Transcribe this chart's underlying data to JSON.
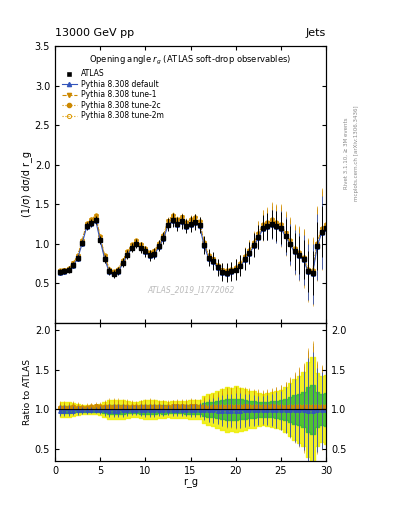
{
  "title_left": "13000 GeV pp",
  "title_right": "Jets",
  "plot_title": "Opening angle $r_g$ (ATLAS soft-drop observables)",
  "ylabel_main": "(1/σ) dσ/d r_g",
  "ylabel_ratio": "Ratio to ATLAS",
  "xlabel": "r_g",
  "watermark": "ATLAS_2019_I1772062",
  "rivet_label": "Rivet 3.1.10, ≥ 3M events",
  "side_label": "mcplots.cern.ch [arXiv:1306.3436]",
  "x": [
    0.5,
    1.0,
    1.5,
    2.0,
    2.5,
    3.0,
    3.5,
    4.0,
    4.5,
    5.0,
    5.5,
    6.0,
    6.5,
    7.0,
    7.5,
    8.0,
    8.5,
    9.0,
    9.5,
    10.0,
    10.5,
    11.0,
    11.5,
    12.0,
    12.5,
    13.0,
    13.5,
    14.0,
    14.5,
    15.0,
    15.5,
    16.0,
    16.5,
    17.0,
    17.5,
    18.0,
    18.5,
    19.0,
    19.5,
    20.0,
    20.5,
    21.0,
    21.5,
    22.0,
    22.5,
    23.0,
    23.5,
    24.0,
    24.5,
    25.0,
    25.5,
    26.0,
    26.5,
    27.0,
    27.5,
    28.0,
    28.5,
    29.0,
    29.5,
    30.0
  ],
  "atlas_y": [
    0.64,
    0.65,
    0.67,
    0.73,
    0.82,
    1.01,
    1.22,
    1.26,
    1.3,
    1.05,
    0.81,
    0.65,
    0.62,
    0.65,
    0.76,
    0.86,
    0.95,
    1.0,
    0.95,
    0.9,
    0.85,
    0.87,
    0.97,
    1.07,
    1.24,
    1.3,
    1.25,
    1.28,
    1.22,
    1.25,
    1.27,
    1.23,
    0.98,
    0.82,
    0.78,
    0.7,
    0.64,
    0.63,
    0.65,
    0.67,
    0.72,
    0.8,
    0.88,
    0.98,
    1.08,
    1.2,
    1.22,
    1.25,
    1.22,
    1.2,
    1.1,
    1.0,
    0.9,
    0.85,
    0.8,
    0.65,
    0.63,
    0.97,
    1.15,
    1.2
  ],
  "atlas_yerr": [
    0.04,
    0.04,
    0.04,
    0.04,
    0.04,
    0.04,
    0.05,
    0.05,
    0.05,
    0.05,
    0.05,
    0.05,
    0.05,
    0.05,
    0.06,
    0.06,
    0.06,
    0.06,
    0.07,
    0.07,
    0.07,
    0.07,
    0.07,
    0.08,
    0.08,
    0.09,
    0.09,
    0.09,
    0.09,
    0.1,
    0.1,
    0.1,
    0.11,
    0.11,
    0.11,
    0.11,
    0.11,
    0.12,
    0.12,
    0.13,
    0.13,
    0.14,
    0.14,
    0.15,
    0.15,
    0.16,
    0.17,
    0.18,
    0.19,
    0.2,
    0.21,
    0.22,
    0.23,
    0.24,
    0.25,
    0.26,
    0.28,
    0.3,
    0.32,
    0.35
  ],
  "default_y": [
    0.63,
    0.64,
    0.66,
    0.72,
    0.81,
    1.0,
    1.21,
    1.25,
    1.29,
    1.04,
    0.8,
    0.64,
    0.61,
    0.64,
    0.75,
    0.85,
    0.94,
    0.99,
    0.94,
    0.89,
    0.84,
    0.86,
    0.96,
    1.06,
    1.23,
    1.29,
    1.24,
    1.27,
    1.21,
    1.24,
    1.26,
    1.22,
    0.97,
    0.81,
    0.77,
    0.69,
    0.63,
    0.62,
    0.64,
    0.66,
    0.71,
    0.79,
    0.87,
    0.97,
    1.07,
    1.19,
    1.21,
    1.24,
    1.21,
    1.19,
    1.09,
    0.99,
    0.89,
    0.84,
    0.79,
    0.64,
    0.62,
    0.96,
    1.14,
    1.19
  ],
  "tune1_y": [
    0.65,
    0.66,
    0.68,
    0.75,
    0.84,
    1.03,
    1.25,
    1.3,
    1.35,
    1.08,
    0.84,
    0.67,
    0.64,
    0.67,
    0.78,
    0.89,
    0.98,
    1.03,
    0.98,
    0.93,
    0.88,
    0.9,
    1.0,
    1.1,
    1.28,
    1.35,
    1.3,
    1.33,
    1.26,
    1.3,
    1.32,
    1.27,
    1.01,
    0.84,
    0.8,
    0.72,
    0.66,
    0.65,
    0.67,
    0.69,
    0.74,
    0.83,
    0.91,
    1.01,
    1.12,
    1.24,
    1.26,
    1.3,
    1.26,
    1.24,
    1.13,
    1.03,
    0.93,
    0.88,
    0.82,
    0.67,
    0.65,
    1.0,
    1.19,
    1.24
  ],
  "tune2c_y": [
    0.65,
    0.66,
    0.68,
    0.74,
    0.83,
    1.02,
    1.23,
    1.28,
    1.33,
    1.06,
    0.83,
    0.66,
    0.63,
    0.66,
    0.77,
    0.87,
    0.96,
    1.01,
    0.96,
    0.91,
    0.86,
    0.88,
    0.98,
    1.08,
    1.25,
    1.32,
    1.27,
    1.3,
    1.23,
    1.26,
    1.28,
    1.24,
    0.99,
    0.82,
    0.78,
    0.7,
    0.64,
    0.63,
    0.65,
    0.67,
    0.72,
    0.81,
    0.89,
    0.99,
    1.09,
    1.21,
    1.24,
    1.27,
    1.24,
    1.21,
    1.11,
    1.01,
    0.91,
    0.86,
    0.8,
    0.65,
    0.63,
    0.98,
    1.16,
    1.21
  ],
  "tune2m_y": [
    0.66,
    0.67,
    0.69,
    0.76,
    0.85,
    1.04,
    1.26,
    1.31,
    1.36,
    1.09,
    0.85,
    0.68,
    0.65,
    0.68,
    0.79,
    0.9,
    0.99,
    1.04,
    0.99,
    0.94,
    0.89,
    0.91,
    1.01,
    1.11,
    1.29,
    1.36,
    1.31,
    1.34,
    1.27,
    1.31,
    1.33,
    1.28,
    1.02,
    0.85,
    0.81,
    0.73,
    0.67,
    0.66,
    0.68,
    0.7,
    0.75,
    0.84,
    0.92,
    1.02,
    1.13,
    1.25,
    1.27,
    1.31,
    1.27,
    1.25,
    1.14,
    1.04,
    0.94,
    0.89,
    0.83,
    0.68,
    0.66,
    1.01,
    1.2,
    1.25
  ],
  "default_yerr": [
    0.02,
    0.02,
    0.02,
    0.02,
    0.02,
    0.02,
    0.02,
    0.02,
    0.02,
    0.02,
    0.02,
    0.02,
    0.02,
    0.02,
    0.02,
    0.02,
    0.02,
    0.02,
    0.02,
    0.02,
    0.02,
    0.02,
    0.02,
    0.02,
    0.03,
    0.03,
    0.03,
    0.03,
    0.03,
    0.03,
    0.03,
    0.04,
    0.04,
    0.04,
    0.05,
    0.05,
    0.06,
    0.06,
    0.07,
    0.08,
    0.09,
    0.1,
    0.11,
    0.12,
    0.13,
    0.15,
    0.16,
    0.18,
    0.2,
    0.22,
    0.24,
    0.26,
    0.28,
    0.3,
    0.32,
    0.35,
    0.38,
    0.42,
    0.46,
    0.5
  ],
  "tune1_yerr": [
    0.02,
    0.02,
    0.02,
    0.02,
    0.02,
    0.02,
    0.03,
    0.03,
    0.03,
    0.03,
    0.03,
    0.03,
    0.03,
    0.03,
    0.03,
    0.03,
    0.03,
    0.03,
    0.03,
    0.03,
    0.03,
    0.03,
    0.03,
    0.04,
    0.04,
    0.04,
    0.04,
    0.05,
    0.05,
    0.05,
    0.05,
    0.05,
    0.06,
    0.06,
    0.07,
    0.07,
    0.08,
    0.08,
    0.09,
    0.1,
    0.11,
    0.12,
    0.13,
    0.14,
    0.16,
    0.18,
    0.19,
    0.21,
    0.23,
    0.25,
    0.27,
    0.29,
    0.31,
    0.33,
    0.36,
    0.39,
    0.42,
    0.46,
    0.5,
    0.55
  ],
  "tune2c_yerr": [
    0.02,
    0.02,
    0.02,
    0.02,
    0.02,
    0.02,
    0.03,
    0.03,
    0.03,
    0.03,
    0.03,
    0.03,
    0.03,
    0.03,
    0.03,
    0.03,
    0.03,
    0.03,
    0.03,
    0.03,
    0.03,
    0.03,
    0.03,
    0.04,
    0.04,
    0.04,
    0.04,
    0.05,
    0.05,
    0.05,
    0.05,
    0.05,
    0.06,
    0.06,
    0.07,
    0.07,
    0.08,
    0.08,
    0.09,
    0.1,
    0.11,
    0.12,
    0.13,
    0.14,
    0.16,
    0.18,
    0.19,
    0.21,
    0.23,
    0.25,
    0.27,
    0.29,
    0.31,
    0.33,
    0.36,
    0.39,
    0.42,
    0.46,
    0.5,
    0.55
  ],
  "tune2m_yerr": [
    0.02,
    0.02,
    0.02,
    0.02,
    0.02,
    0.02,
    0.03,
    0.03,
    0.03,
    0.03,
    0.03,
    0.03,
    0.03,
    0.03,
    0.03,
    0.03,
    0.03,
    0.03,
    0.03,
    0.03,
    0.03,
    0.03,
    0.03,
    0.04,
    0.04,
    0.04,
    0.04,
    0.05,
    0.05,
    0.05,
    0.05,
    0.05,
    0.06,
    0.06,
    0.07,
    0.07,
    0.08,
    0.08,
    0.09,
    0.1,
    0.11,
    0.12,
    0.13,
    0.14,
    0.16,
    0.18,
    0.19,
    0.21,
    0.23,
    0.25,
    0.27,
    0.29,
    0.31,
    0.33,
    0.36,
    0.39,
    0.42,
    0.46,
    0.5,
    0.55
  ],
  "ylim_main": [
    0,
    3.5
  ],
  "ylim_ratio": [
    0.35,
    2.1
  ],
  "xlim": [
    0,
    30
  ],
  "yticks_main": [
    0.5,
    1.0,
    1.5,
    2.0,
    2.5,
    3.0,
    3.5
  ],
  "yticks_ratio": [
    0.5,
    1.0,
    1.5,
    2.0
  ],
  "xticks": [
    0,
    5,
    10,
    15,
    20,
    25,
    30
  ],
  "color_atlas": "#000000",
  "color_default": "#3355bb",
  "color_tune1": "#cc8800",
  "color_tune2c": "#cc8800",
  "color_tune2m": "#dd9900",
  "band_yellow": "#eeee00",
  "band_green": "#33bb33"
}
